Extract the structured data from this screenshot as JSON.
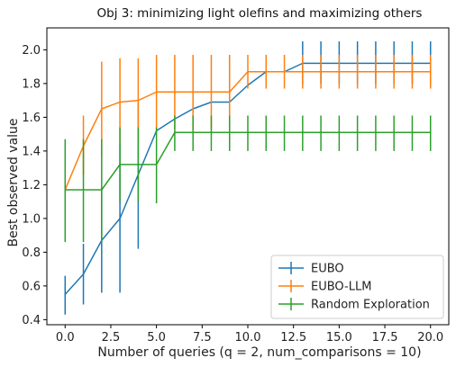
{
  "chart_data": {
    "type": "line",
    "title": "Obj 3: minimizing light olefins and maximizing others",
    "xlabel": "Number of queries (q = 2, num_comparisons = 10)",
    "ylabel": "Best observed value",
    "xlim": [
      -1,
      21
    ],
    "ylim": [
      0.37,
      2.13
    ],
    "xticks": [
      0.0,
      2.5,
      5.0,
      7.5,
      10.0,
      12.5,
      15.0,
      17.5,
      20.0
    ],
    "xtick_labels": [
      "0.0",
      "2.5",
      "5.0",
      "7.5",
      "10.0",
      "12.5",
      "15.0",
      "17.5",
      "20.0"
    ],
    "yticks": [
      0.4,
      0.6,
      0.8,
      1.0,
      1.2,
      1.4,
      1.6,
      1.8,
      2.0
    ],
    "ytick_labels": [
      "0.4",
      "0.6",
      "0.8",
      "1.0",
      "1.2",
      "1.4",
      "1.6",
      "1.8",
      "2.0"
    ],
    "grid": false,
    "legend_position": "bottom-right",
    "x": [
      0,
      1,
      2,
      3,
      4,
      5,
      6,
      7,
      8,
      9,
      10,
      11,
      12,
      13,
      14,
      15,
      16,
      17,
      18,
      19,
      20
    ],
    "series": [
      {
        "name": "EUBO",
        "color": "#1f77b4",
        "values": [
          0.55,
          0.67,
          0.87,
          1.0,
          1.26,
          1.52,
          1.59,
          1.65,
          1.69,
          1.69,
          1.79,
          1.87,
          1.87,
          1.92,
          1.92,
          1.92,
          1.92,
          1.92,
          1.92,
          1.92,
          1.92
        ],
        "err_low": [
          0.43,
          0.49,
          0.56,
          0.56,
          0.82,
          null,
          null,
          null,
          null,
          null,
          null,
          null,
          null,
          1.8,
          1.8,
          1.8,
          1.8,
          1.8,
          1.8,
          1.8,
          1.8
        ],
        "err_high": [
          0.66,
          0.85,
          1.18,
          1.44,
          1.69,
          null,
          null,
          null,
          null,
          null,
          null,
          null,
          null,
          2.05,
          2.05,
          2.05,
          2.05,
          2.05,
          2.05,
          2.05,
          2.05
        ]
      },
      {
        "name": "EUBO-LLM",
        "color": "#ff7f0e",
        "values": [
          1.17,
          1.43,
          1.65,
          1.69,
          1.7,
          1.75,
          1.75,
          1.75,
          1.75,
          1.75,
          1.87,
          1.87,
          1.87,
          1.87,
          1.87,
          1.87,
          1.87,
          1.87,
          1.87,
          1.87,
          1.87
        ],
        "err_low": [
          1.17,
          1.26,
          1.37,
          1.44,
          1.45,
          1.53,
          1.53,
          1.53,
          1.53,
          1.53,
          1.77,
          1.77,
          1.77,
          1.77,
          1.77,
          1.77,
          1.77,
          1.77,
          1.77,
          1.77,
          1.77
        ],
        "err_high": [
          1.17,
          1.61,
          1.93,
          1.95,
          1.95,
          1.97,
          1.97,
          1.97,
          1.97,
          1.97,
          1.97,
          1.97,
          1.97,
          1.97,
          1.97,
          1.97,
          1.97,
          1.97,
          1.97,
          1.97,
          1.97
        ]
      },
      {
        "name": "Random Exploration",
        "color": "#2ca02c",
        "values": [
          1.17,
          1.17,
          1.17,
          1.32,
          1.32,
          1.32,
          1.51,
          1.51,
          1.51,
          1.51,
          1.51,
          1.51,
          1.51,
          1.51,
          1.51,
          1.51,
          1.51,
          1.51,
          1.51,
          1.51,
          1.51
        ],
        "err_low": [
          0.86,
          0.86,
          0.86,
          1.1,
          1.1,
          1.09,
          1.4,
          1.4,
          1.4,
          1.4,
          1.4,
          1.4,
          1.4,
          1.4,
          1.4,
          1.4,
          1.4,
          1.4,
          1.4,
          1.4,
          1.4
        ],
        "err_high": [
          1.47,
          1.47,
          1.47,
          1.54,
          1.54,
          1.54,
          1.61,
          1.61,
          1.61,
          1.61,
          1.61,
          1.61,
          1.61,
          1.61,
          1.61,
          1.61,
          1.61,
          1.61,
          1.61,
          1.61,
          1.61
        ]
      }
    ]
  }
}
